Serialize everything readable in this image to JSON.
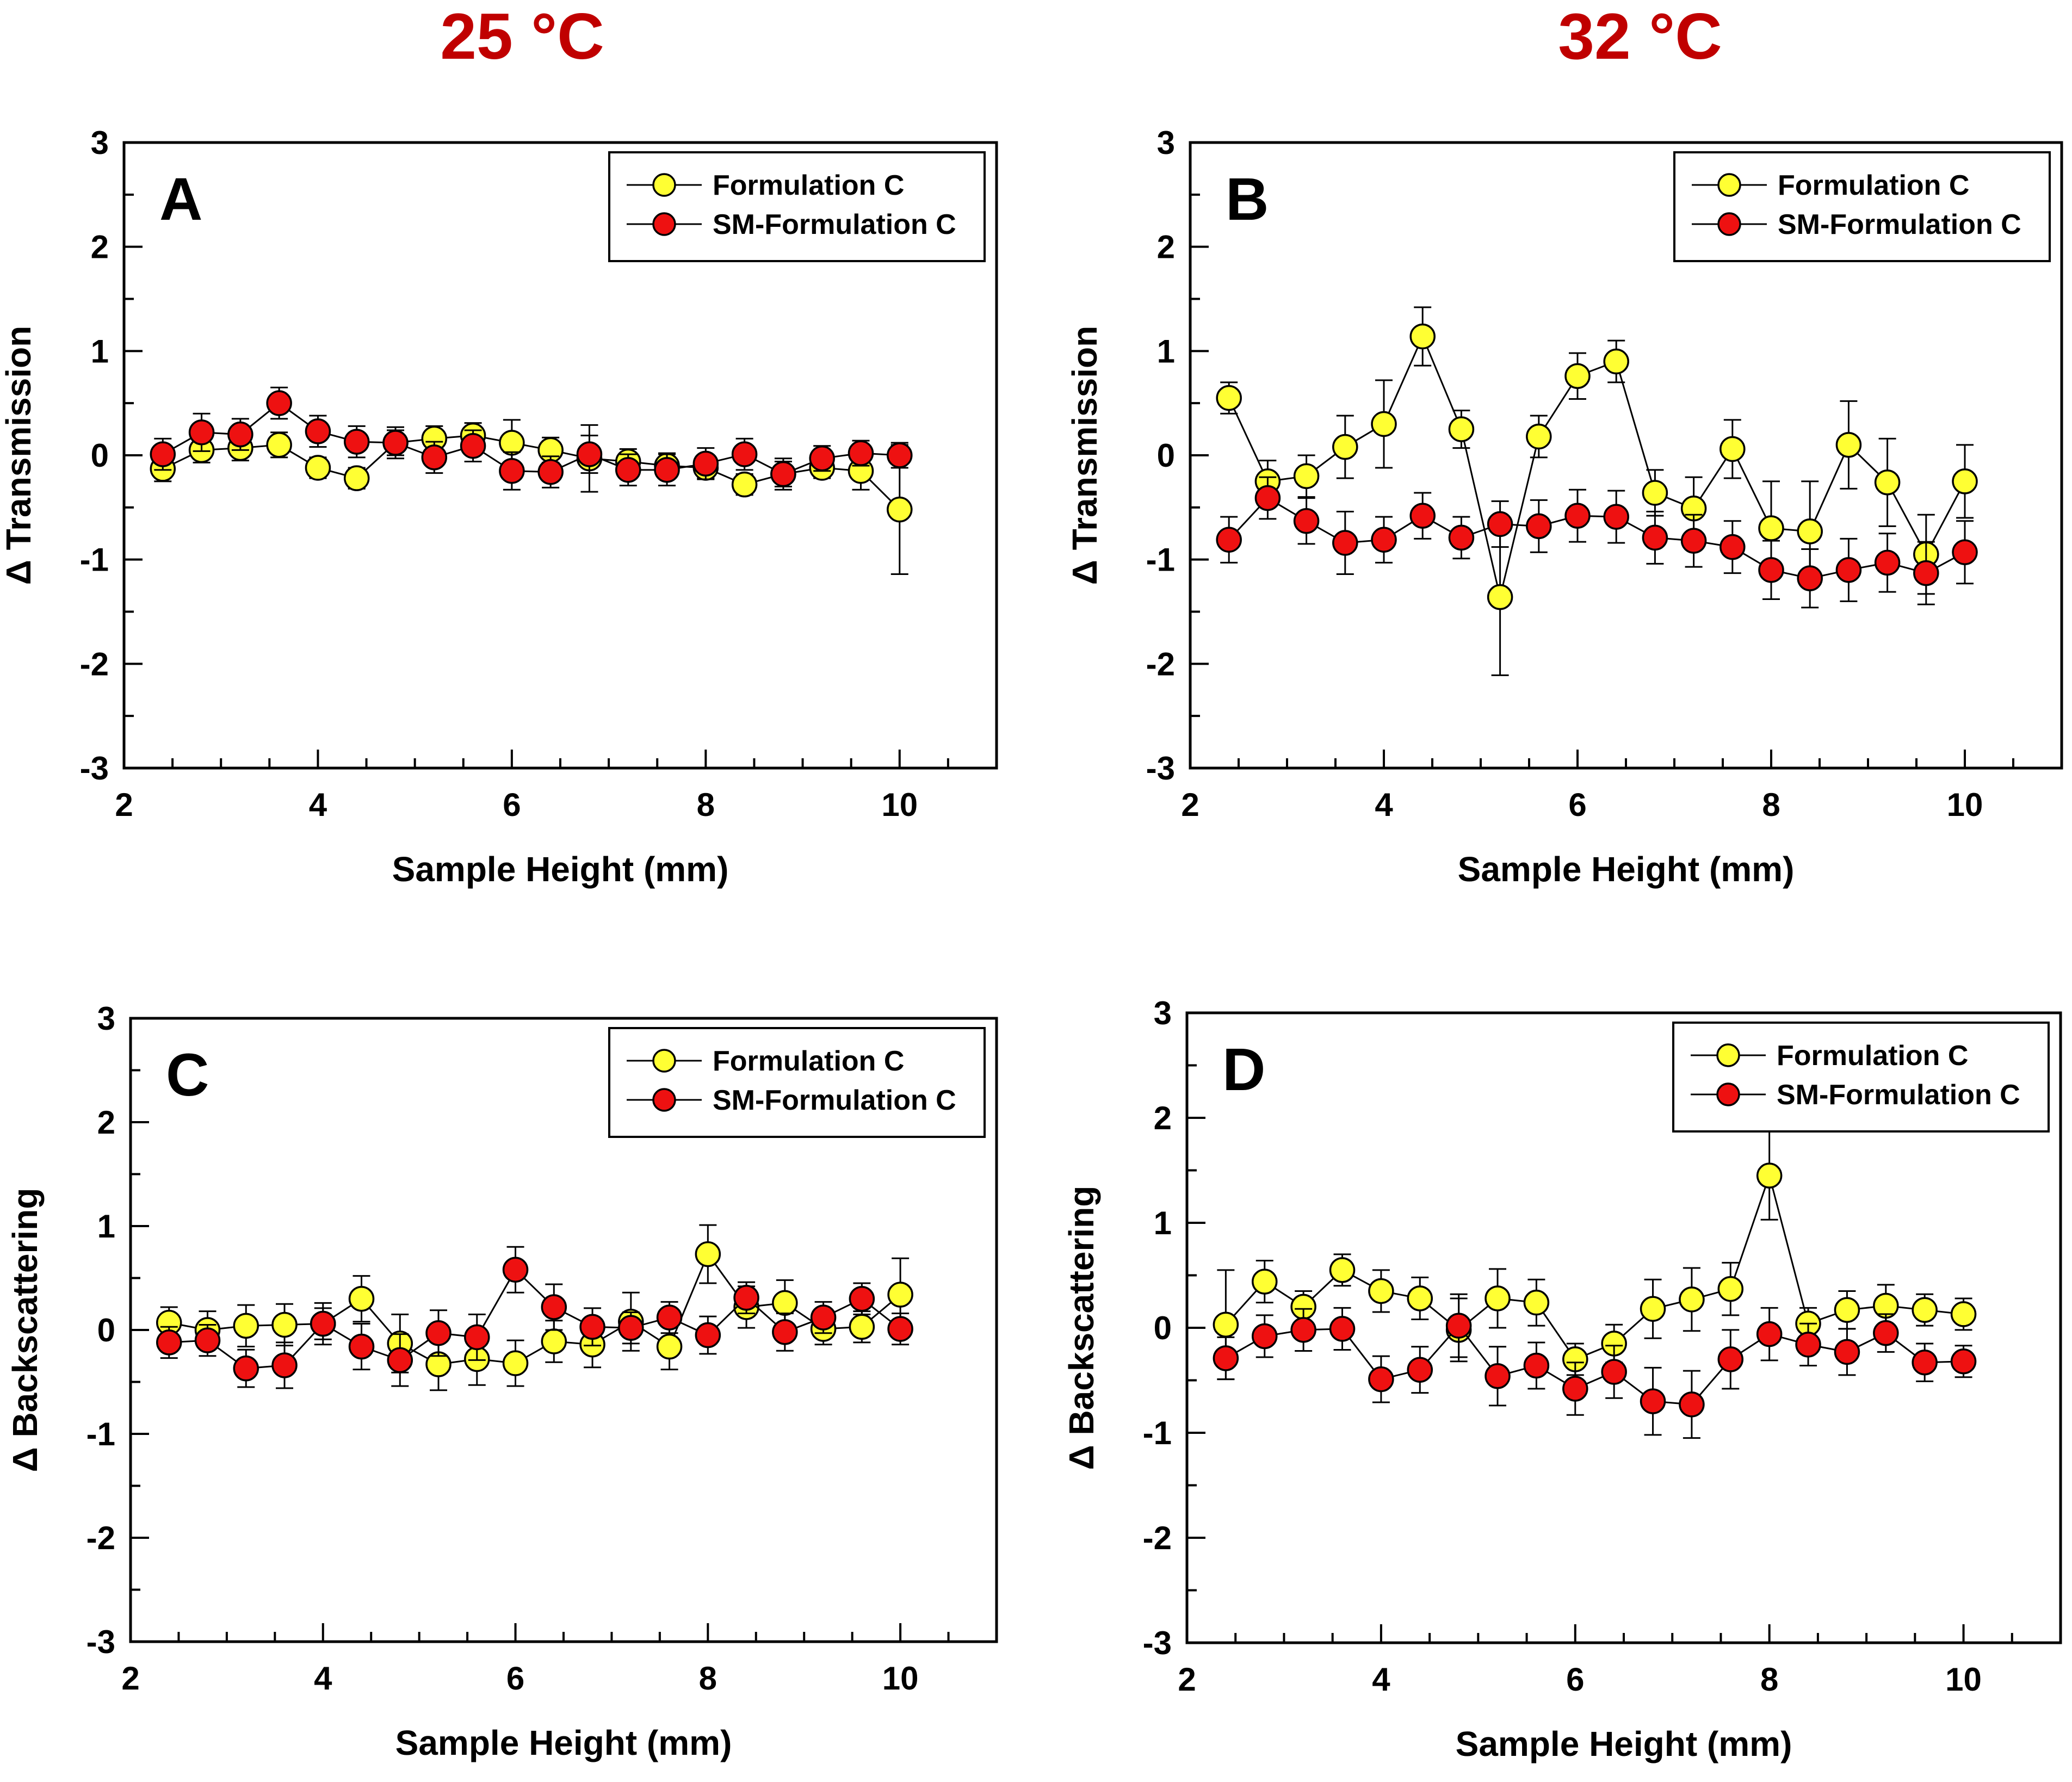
{
  "titles": {
    "left": "25 °C",
    "right": "32 °C",
    "color": "#c00000"
  },
  "colors": {
    "formulation": "#ffff33",
    "sm_formulation": "#ee1111",
    "stroke": "#000000"
  },
  "chart_data": [
    {
      "type": "scatter",
      "panel": "A",
      "xlabel": "Sample Height (mm)",
      "ylabel": "Δ Transmission",
      "xlim": [
        2,
        11
      ],
      "ylim": [
        -3,
        3
      ],
      "xticks": [
        2,
        4,
        6,
        8,
        10
      ],
      "yticks": [
        -3,
        -2,
        -1,
        0,
        1,
        2,
        3
      ],
      "legend": "top-right",
      "x": [
        2.4,
        2.8,
        3.2,
        3.6,
        4.0,
        4.4,
        4.8,
        5.2,
        5.6,
        6.0,
        6.4,
        6.8,
        7.2,
        7.6,
        8.0,
        8.4,
        8.8,
        9.2,
        9.6,
        10.0
      ],
      "series": [
        {
          "name": "Formulation C",
          "color_key": "formulation",
          "values": [
            -0.13,
            0.05,
            0.07,
            0.1,
            -0.12,
            -0.22,
            0.12,
            0.16,
            0.19,
            0.12,
            0.05,
            -0.03,
            -0.06,
            -0.1,
            -0.12,
            -0.28,
            -0.18,
            -0.12,
            -0.15,
            -0.52
          ],
          "errors": [
            0.12,
            0.12,
            0.12,
            0.12,
            0.1,
            0.1,
            0.12,
            0.12,
            0.12,
            0.22,
            0.12,
            0.32,
            0.12,
            0.12,
            0.1,
            0.1,
            0.12,
            0.1,
            0.18,
            0.62
          ]
        },
        {
          "name": "SM-Formulation C",
          "color_key": "sm_formulation",
          "values": [
            0.01,
            0.22,
            0.2,
            0.5,
            0.23,
            0.13,
            0.12,
            -0.02,
            0.09,
            -0.15,
            -0.16,
            0.01,
            -0.14,
            -0.14,
            -0.08,
            0.01,
            -0.18,
            -0.03,
            0.02,
            0.0
          ],
          "errors": [
            0.15,
            0.18,
            0.15,
            0.15,
            0.15,
            0.15,
            0.15,
            0.15,
            0.15,
            0.18,
            0.15,
            0.18,
            0.15,
            0.15,
            0.15,
            0.15,
            0.15,
            0.12,
            0.12,
            0.12
          ]
        }
      ]
    },
    {
      "type": "scatter",
      "panel": "B",
      "xlabel": "Sample Height (mm)",
      "ylabel": "Δ Transmission",
      "xlim": [
        2,
        11
      ],
      "ylim": [
        -3,
        3
      ],
      "xticks": [
        2,
        4,
        6,
        8,
        10
      ],
      "yticks": [
        -3,
        -2,
        -1,
        0,
        1,
        2,
        3
      ],
      "legend": "top-right",
      "x": [
        2.4,
        2.8,
        3.2,
        3.6,
        4.0,
        4.4,
        4.8,
        5.2,
        5.6,
        6.0,
        6.4,
        6.8,
        7.2,
        7.6,
        8.0,
        8.4,
        8.8,
        9.2,
        9.6,
        10.0
      ],
      "series": [
        {
          "name": "Formulation C",
          "color_key": "formulation",
          "values": [
            0.55,
            -0.25,
            -0.2,
            0.08,
            0.3,
            1.14,
            0.25,
            -1.36,
            0.18,
            0.76,
            0.9,
            -0.36,
            -0.51,
            0.06,
            -0.7,
            -0.73,
            0.1,
            -0.26,
            -0.95,
            -0.25
          ],
          "errors": [
            0.15,
            0.2,
            0.2,
            0.3,
            0.42,
            0.28,
            0.18,
            0.75,
            0.2,
            0.22,
            0.2,
            0.22,
            0.3,
            0.28,
            0.45,
            0.48,
            0.42,
            0.42,
            0.38,
            0.35
          ]
        },
        {
          "name": "SM-Formulation C",
          "color_key": "sm_formulation",
          "values": [
            -0.81,
            -0.41,
            -0.63,
            -0.84,
            -0.81,
            -0.58,
            -0.79,
            -0.66,
            -0.68,
            -0.58,
            -0.59,
            -0.79,
            -0.82,
            -0.88,
            -1.1,
            -1.18,
            -1.1,
            -1.03,
            -1.13,
            -0.93
          ],
          "errors": [
            0.22,
            0.2,
            0.22,
            0.3,
            0.22,
            0.22,
            0.2,
            0.22,
            0.25,
            0.25,
            0.25,
            0.25,
            0.25,
            0.25,
            0.28,
            0.28,
            0.3,
            0.28,
            0.3,
            0.3
          ]
        }
      ]
    },
    {
      "type": "scatter",
      "panel": "C",
      "xlabel": "Sample Height (mm)",
      "ylabel": "Δ Backscattering",
      "xlim": [
        2,
        11
      ],
      "ylim": [
        -3,
        3
      ],
      "xticks": [
        2,
        4,
        6,
        8,
        10
      ],
      "yticks": [
        -3,
        -2,
        -1,
        0,
        1,
        2,
        3
      ],
      "legend": "top-right",
      "x": [
        2.4,
        2.8,
        3.2,
        3.6,
        4.0,
        4.4,
        4.8,
        5.2,
        5.6,
        6.0,
        6.4,
        6.8,
        7.2,
        7.6,
        8.0,
        8.4,
        8.8,
        9.2,
        9.6,
        10.0
      ],
      "series": [
        {
          "name": "Formulation C",
          "color_key": "formulation",
          "values": [
            0.07,
            0.0,
            0.04,
            0.05,
            0.06,
            0.3,
            -0.13,
            -0.33,
            -0.28,
            -0.32,
            -0.11,
            -0.14,
            0.08,
            -0.16,
            0.73,
            0.22,
            0.26,
            0.01,
            0.03,
            0.34
          ],
          "errors": [
            0.15,
            0.18,
            0.2,
            0.2,
            0.2,
            0.22,
            0.28,
            0.25,
            0.25,
            0.22,
            0.2,
            0.22,
            0.28,
            0.22,
            0.28,
            0.2,
            0.22,
            0.15,
            0.15,
            0.35
          ]
        },
        {
          "name": "SM-Formulation C",
          "color_key": "sm_formulation",
          "values": [
            -0.12,
            -0.1,
            -0.37,
            -0.34,
            0.06,
            -0.16,
            -0.29,
            -0.03,
            -0.07,
            0.58,
            0.22,
            0.03,
            0.02,
            0.12,
            -0.05,
            0.31,
            -0.02,
            0.12,
            0.3,
            0.01
          ],
          "errors": [
            0.15,
            0.15,
            0.18,
            0.22,
            0.15,
            0.22,
            0.25,
            0.22,
            0.22,
            0.22,
            0.22,
            0.18,
            0.15,
            0.15,
            0.18,
            0.15,
            0.18,
            0.15,
            0.15,
            0.15
          ]
        }
      ]
    },
    {
      "type": "scatter",
      "panel": "D",
      "xlabel": "Sample Height (mm)",
      "ylabel": "Δ Backscattering",
      "xlim": [
        2,
        11
      ],
      "ylim": [
        -3,
        3
      ],
      "xticks": [
        2,
        4,
        6,
        8,
        10
      ],
      "yticks": [
        -3,
        -2,
        -1,
        0,
        1,
        2,
        3
      ],
      "legend": "top-right",
      "x": [
        2.4,
        2.8,
        3.2,
        3.6,
        4.0,
        4.4,
        4.8,
        5.2,
        5.6,
        6.0,
        6.4,
        6.8,
        7.2,
        7.6,
        8.0,
        8.4,
        8.8,
        9.2,
        9.6,
        10.0
      ],
      "series": [
        {
          "name": "Formulation C",
          "color_key": "formulation",
          "values": [
            0.03,
            0.44,
            0.2,
            0.55,
            0.35,
            0.28,
            -0.02,
            0.28,
            0.24,
            -0.3,
            -0.15,
            0.18,
            0.27,
            0.37,
            1.45,
            0.04,
            0.17,
            0.21,
            0.17,
            0.13
          ],
          "errors": [
            0.52,
            0.2,
            0.15,
            0.15,
            0.2,
            0.2,
            0.3,
            0.28,
            0.22,
            0.15,
            0.18,
            0.28,
            0.3,
            0.25,
            0.42,
            0.15,
            0.18,
            0.2,
            0.15,
            0.15
          ]
        },
        {
          "name": "SM-Formulation C",
          "color_key": "sm_formulation",
          "values": [
            -0.29,
            -0.08,
            -0.02,
            -0.01,
            -0.49,
            -0.4,
            0.02,
            -0.46,
            -0.36,
            -0.58,
            -0.42,
            -0.7,
            -0.73,
            -0.3,
            -0.06,
            -0.16,
            -0.23,
            -0.05,
            -0.33,
            -0.32
          ],
          "errors": [
            0.2,
            0.2,
            0.2,
            0.2,
            0.22,
            0.22,
            0.3,
            0.28,
            0.22,
            0.25,
            0.25,
            0.32,
            0.32,
            0.28,
            0.25,
            0.2,
            0.22,
            0.18,
            0.18,
            0.15
          ]
        }
      ]
    }
  ]
}
